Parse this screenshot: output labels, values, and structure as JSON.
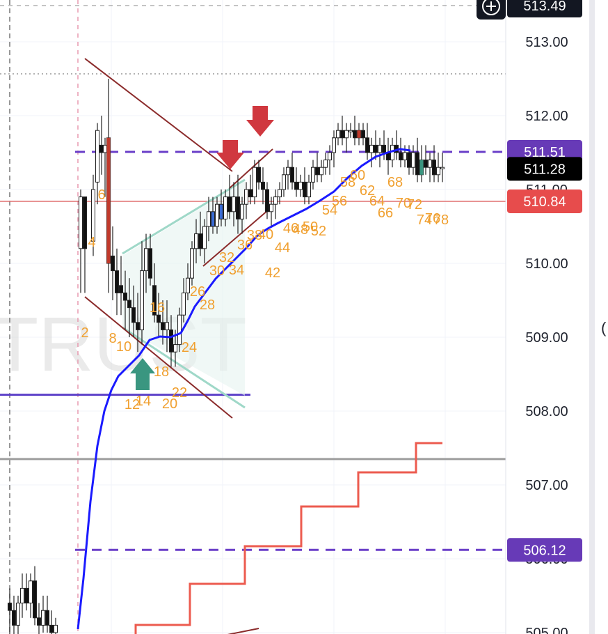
{
  "chart_data": {
    "type": "candlestick",
    "y_axis": {
      "side": "right",
      "ticks": [
        "513.00",
        "512.00",
        "511.00",
        "510.00",
        "509.00",
        "508.00",
        "507.00",
        "506.00",
        "505.00"
      ],
      "range": [
        504.95,
        513.55
      ]
    },
    "price_badges": [
      {
        "label": "513.49",
        "value": 513.49,
        "color": "#131722",
        "role": "crosshair"
      },
      {
        "label": "511.51",
        "value": 511.51,
        "color": "#673ab7",
        "role": "level"
      },
      {
        "label": "511.28",
        "value": 511.28,
        "color": "#000000",
        "role": "last-price"
      },
      {
        "label": "510.84",
        "value": 510.84,
        "color": "#e74c4c",
        "role": "level"
      },
      {
        "label": "506.12",
        "value": 506.12,
        "color": "#673ab7",
        "role": "level"
      }
    ],
    "bar_counts": [
      "2",
      "4",
      "6",
      "8",
      "10",
      "12",
      "14",
      "16",
      "18",
      "20",
      "22",
      "24",
      "26",
      "28",
      "30",
      "32",
      "34",
      "36",
      "38",
      "40",
      "42",
      "44",
      "46",
      "48",
      "50",
      "52",
      "54",
      "56",
      "58",
      "60",
      "62",
      "64",
      "66",
      "68",
      "70",
      "72",
      "74",
      "76",
      "78"
    ],
    "watermark": "TRUST",
    "colors": {
      "ema": "#1a1aff",
      "trailing_stop": "#ec5b4f",
      "wedge": "#8b2b2b",
      "triangle": "#9fd8c8",
      "arrow_down": "#d0383f",
      "arrow_up": "#3a9680",
      "dash_level": "#6a3fc8",
      "gray_level": "#9e9e9e",
      "red_level": "#e07070"
    }
  }
}
